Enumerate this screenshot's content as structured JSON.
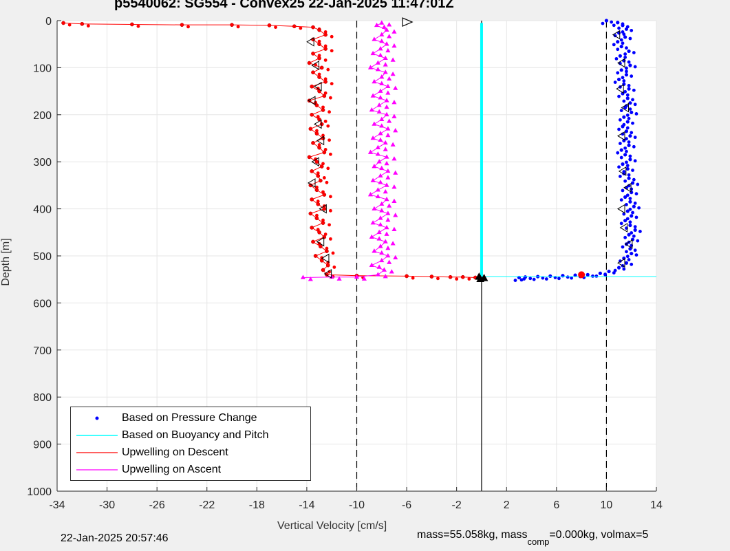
{
  "title": "p5540062: SG554 - Convex25 22-Jan-2025 11:47:01Z",
  "footer": {
    "date": "22-Jan-2025 20:57:46",
    "params_pre": "mass=55.058kg, mass",
    "params_sub": "comp",
    "params_post": "=0.000kg, volmax=5"
  },
  "colors": {
    "pressure": "#0000ff",
    "buoyancy": "#00ffff",
    "descent": "#ff0000",
    "ascent": "#ff00ff",
    "background": "#f0f0f0",
    "axes_bg": "#ffffff"
  },
  "chart_data": {
    "type": "scatter",
    "title": "p5540062: SG554 - Convex25 22-Jan-2025 11:47:01Z",
    "xlabel": "Vertical Velocity [cm/s]",
    "ylabel": "Depth [m]",
    "xlim": [
      -34,
      14
    ],
    "ylim": [
      0,
      1000
    ],
    "y_reversed": true,
    "grid": true,
    "legend_position": "bottom-left",
    "xticks": [
      "-34",
      "-30",
      "-26",
      "-22",
      "-18",
      "-14",
      "-10",
      "-6",
      "-2",
      "2",
      "6",
      "10",
      "14"
    ],
    "yticks": [
      "0",
      "100",
      "200",
      "300",
      "400",
      "500",
      "600",
      "700",
      "800",
      "900",
      "1000"
    ],
    "reference_lines": [
      {
        "x": -10,
        "style": "dashed"
      },
      {
        "x": 10,
        "style": "dashed"
      },
      {
        "x": 0,
        "style": "solid"
      }
    ],
    "series": [
      {
        "name": "Based on Pressure Change",
        "marker": "dot",
        "color": "#0000ff",
        "points": [
          [
            10.0,
            0
          ],
          [
            10.9,
            4
          ],
          [
            11.3,
            10
          ],
          [
            11.6,
            18
          ],
          [
            11.0,
            26
          ],
          [
            11.5,
            35
          ],
          [
            10.9,
            45
          ],
          [
            11.2,
            55
          ],
          [
            11.8,
            65
          ],
          [
            11.1,
            75
          ],
          [
            11.4,
            85
          ],
          [
            11.9,
            95
          ],
          [
            11.2,
            105
          ],
          [
            11.6,
            115
          ],
          [
            11.0,
            125
          ],
          [
            11.4,
            135
          ],
          [
            11.8,
            145
          ],
          [
            11.3,
            155
          ],
          [
            11.7,
            165
          ],
          [
            11.9,
            175
          ],
          [
            11.5,
            185
          ],
          [
            12.0,
            195
          ],
          [
            11.4,
            205
          ],
          [
            11.7,
            215
          ],
          [
            11.3,
            225
          ],
          [
            11.6,
            235
          ],
          [
            11.9,
            245
          ],
          [
            11.4,
            255
          ],
          [
            11.8,
            265
          ],
          [
            11.2,
            275
          ],
          [
            11.5,
            285
          ],
          [
            11.9,
            295
          ],
          [
            11.3,
            305
          ],
          [
            11.7,
            315
          ],
          [
            11.4,
            325
          ],
          [
            11.8,
            335
          ],
          [
            12.1,
            345
          ],
          [
            11.6,
            355
          ],
          [
            12.0,
            365
          ],
          [
            11.5,
            375
          ],
          [
            11.9,
            385
          ],
          [
            12.2,
            395
          ],
          [
            11.7,
            405
          ],
          [
            12.0,
            415
          ],
          [
            11.5,
            425
          ],
          [
            11.9,
            435
          ],
          [
            12.3,
            445
          ],
          [
            11.8,
            455
          ],
          [
            12.1,
            465
          ],
          [
            11.6,
            475
          ],
          [
            11.9,
            485
          ],
          [
            12.0,
            495
          ],
          [
            11.4,
            505
          ],
          [
            11.6,
            515
          ],
          [
            11.0,
            525
          ],
          [
            10.2,
            533
          ],
          [
            9.5,
            537
          ],
          [
            8.5,
            540
          ],
          [
            7.5,
            541
          ],
          [
            6.5,
            542
          ],
          [
            5.5,
            543
          ],
          [
            4.5,
            544
          ],
          [
            3.5,
            545
          ],
          [
            3.0,
            546
          ]
        ]
      },
      {
        "name": "Based on Buoyancy and Pitch",
        "marker": "line",
        "color": "#00ffff",
        "points": [
          [
            0,
            5
          ],
          [
            0,
            544
          ],
          [
            14,
            544
          ]
        ]
      },
      {
        "name": "Upwelling on Descent",
        "marker": "dot-line",
        "color": "#ff0000",
        "points": [
          [
            -33.5,
            5
          ],
          [
            -32.0,
            7
          ],
          [
            -28.0,
            8
          ],
          [
            -24.0,
            9
          ],
          [
            -20.0,
            9
          ],
          [
            -17.0,
            10
          ],
          [
            -15.0,
            12
          ],
          [
            -13.5,
            14
          ],
          [
            -13.0,
            20
          ],
          [
            -12.5,
            30
          ],
          [
            -13.5,
            40
          ],
          [
            -13.0,
            50
          ],
          [
            -12.5,
            60
          ],
          [
            -13.5,
            70
          ],
          [
            -13.0,
            80
          ],
          [
            -13.8,
            90
          ],
          [
            -12.8,
            100
          ],
          [
            -13.5,
            110
          ],
          [
            -13.0,
            120
          ],
          [
            -12.5,
            130
          ],
          [
            -13.6,
            140
          ],
          [
            -13.0,
            150
          ],
          [
            -12.6,
            160
          ],
          [
            -13.8,
            170
          ],
          [
            -13.2,
            180
          ],
          [
            -12.7,
            190
          ],
          [
            -13.6,
            200
          ],
          [
            -13.0,
            210
          ],
          [
            -12.8,
            220
          ],
          [
            -13.7,
            230
          ],
          [
            -13.2,
            240
          ],
          [
            -12.7,
            250
          ],
          [
            -13.5,
            260
          ],
          [
            -13.0,
            270
          ],
          [
            -12.6,
            280
          ],
          [
            -13.8,
            290
          ],
          [
            -13.2,
            300
          ],
          [
            -12.8,
            310
          ],
          [
            -13.6,
            320
          ],
          [
            -13.1,
            330
          ],
          [
            -12.9,
            340
          ],
          [
            -13.7,
            350
          ],
          [
            -13.2,
            360
          ],
          [
            -12.6,
            370
          ],
          [
            -13.6,
            380
          ],
          [
            -13.1,
            390
          ],
          [
            -12.6,
            400
          ],
          [
            -13.7,
            410
          ],
          [
            -13.2,
            420
          ],
          [
            -12.7,
            430
          ],
          [
            -13.6,
            440
          ],
          [
            -13.0,
            450
          ],
          [
            -12.6,
            460
          ],
          [
            -13.5,
            470
          ],
          [
            -12.9,
            480
          ],
          [
            -12.4,
            490
          ],
          [
            -13.3,
            500
          ],
          [
            -12.8,
            510
          ],
          [
            -12.3,
            520
          ],
          [
            -12.7,
            530
          ],
          [
            -12.4,
            540
          ],
          [
            -10.0,
            542
          ],
          [
            -6.0,
            543
          ],
          [
            -4.0,
            544
          ],
          [
            -2.5,
            545
          ],
          [
            -1.5,
            545
          ],
          [
            -0.5,
            546
          ]
        ]
      },
      {
        "name": "Upwelling on Ascent",
        "marker": "triangle-line",
        "color": "#ff00ff",
        "points": [
          [
            -14.3,
            546
          ],
          [
            -12.0,
            545
          ],
          [
            -10.0,
            545
          ],
          [
            -8.3,
            540
          ],
          [
            -7.8,
            530
          ],
          [
            -8.8,
            520
          ],
          [
            -8.0,
            510
          ],
          [
            -7.5,
            500
          ],
          [
            -8.6,
            490
          ],
          [
            -8.1,
            480
          ],
          [
            -7.7,
            470
          ],
          [
            -8.8,
            460
          ],
          [
            -8.2,
            450
          ],
          [
            -7.6,
            440
          ],
          [
            -8.7,
            430
          ],
          [
            -8.1,
            420
          ],
          [
            -7.5,
            410
          ],
          [
            -8.6,
            400
          ],
          [
            -8.0,
            390
          ],
          [
            -7.6,
            380
          ],
          [
            -8.9,
            370
          ],
          [
            -8.3,
            360
          ],
          [
            -7.6,
            350
          ],
          [
            -8.7,
            340
          ],
          [
            -8.1,
            330
          ],
          [
            -7.5,
            320
          ],
          [
            -8.6,
            310
          ],
          [
            -8.2,
            300
          ],
          [
            -7.6,
            290
          ],
          [
            -8.9,
            280
          ],
          [
            -8.3,
            270
          ],
          [
            -7.7,
            260
          ],
          [
            -8.7,
            250
          ],
          [
            -8.1,
            240
          ],
          [
            -7.5,
            230
          ],
          [
            -8.6,
            220
          ],
          [
            -8.0,
            210
          ],
          [
            -7.6,
            200
          ],
          [
            -8.8,
            190
          ],
          [
            -8.2,
            180
          ],
          [
            -7.6,
            170
          ],
          [
            -8.7,
            160
          ],
          [
            -8.1,
            150
          ],
          [
            -7.5,
            140
          ],
          [
            -8.6,
            130
          ],
          [
            -8.0,
            120
          ],
          [
            -7.7,
            110
          ],
          [
            -8.9,
            100
          ],
          [
            -8.3,
            90
          ],
          [
            -7.7,
            80
          ],
          [
            -8.7,
            70
          ],
          [
            -8.1,
            60
          ],
          [
            -7.6,
            50
          ],
          [
            -8.6,
            40
          ],
          [
            -8.0,
            30
          ],
          [
            -7.6,
            20
          ],
          [
            -8.4,
            10
          ],
          [
            -8.0,
            5
          ]
        ]
      }
    ],
    "annotations": [
      {
        "type": "red-dot",
        "x": 8.0,
        "y": 540
      },
      {
        "type": "open-triangles-descent",
        "points": [
          [
            -13.6,
            45
          ],
          [
            -13.2,
            95
          ],
          [
            -13.0,
            140
          ],
          [
            -13.5,
            170
          ],
          [
            -13.0,
            220
          ],
          [
            -12.8,
            255
          ],
          [
            -13.2,
            300
          ],
          [
            -13.5,
            345
          ],
          [
            -12.6,
            400
          ],
          [
            -12.8,
            470
          ],
          [
            -12.4,
            505
          ],
          [
            -12.2,
            538
          ]
        ]
      },
      {
        "type": "open-triangles-pressure",
        "points": [
          [
            10.9,
            30
          ],
          [
            11.3,
            90
          ],
          [
            11.2,
            145
          ],
          [
            11.6,
            185
          ],
          [
            11.3,
            245
          ],
          [
            11.4,
            320
          ],
          [
            11.8,
            355
          ],
          [
            11.3,
            400
          ],
          [
            11.5,
            440
          ],
          [
            11.9,
            475
          ],
          [
            11.3,
            515
          ]
        ]
      },
      {
        "type": "open-triangle-top",
        "x": -6.0,
        "y": 3
      },
      {
        "type": "black-markers-bottom",
        "points": [
          [
            -0.2,
            544
          ],
          [
            0.2,
            547
          ],
          [
            -0.1,
            549
          ]
        ]
      }
    ]
  },
  "legend": [
    {
      "label": "Based on Pressure Change",
      "style": "dot"
    },
    {
      "label": "Based on Buoyancy and Pitch",
      "style": "line-cyan"
    },
    {
      "label": "Upwelling on Descent",
      "style": "line-red"
    },
    {
      "label": "Upwelling on Ascent",
      "style": "line-magenta"
    }
  ]
}
